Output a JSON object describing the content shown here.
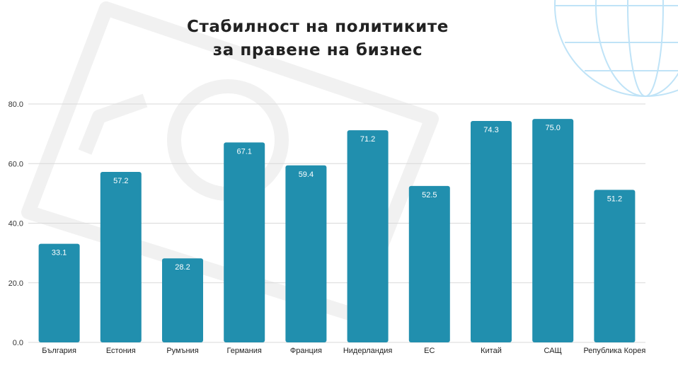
{
  "colors": {
    "bar": "#218fae",
    "grid": "#d9d9d9",
    "globe": "#bfe3f7",
    "watermark": "#f1f1f1"
  },
  "decorations": [
    "globe-graphic",
    "banknote-watermark"
  ],
  "chart_data": {
    "type": "bar",
    "title": [
      "Стабилност на политиките",
      "за правене на бизнес"
    ],
    "xlabel": "",
    "ylabel": "",
    "ylim": [
      0,
      80
    ],
    "yticks": [
      "0.0",
      "20.0",
      "40.0",
      "60.0",
      "80.0"
    ],
    "grid": true,
    "legend": "none",
    "categories": [
      "България",
      "Естония",
      "Румъния",
      "Германия",
      "Франция",
      "Нидерландия",
      "ЕС",
      "Китай",
      "САЩ",
      "Република Корея"
    ],
    "values": [
      33.1,
      57.2,
      28.2,
      67.1,
      59.4,
      71.2,
      52.5,
      74.3,
      75.0,
      51.2
    ],
    "value_labels": [
      "33.1",
      "57.2",
      "28.2",
      "67.1",
      "59.4",
      "71.2",
      "52.5",
      "74.3",
      "75.0",
      "51.2"
    ]
  }
}
